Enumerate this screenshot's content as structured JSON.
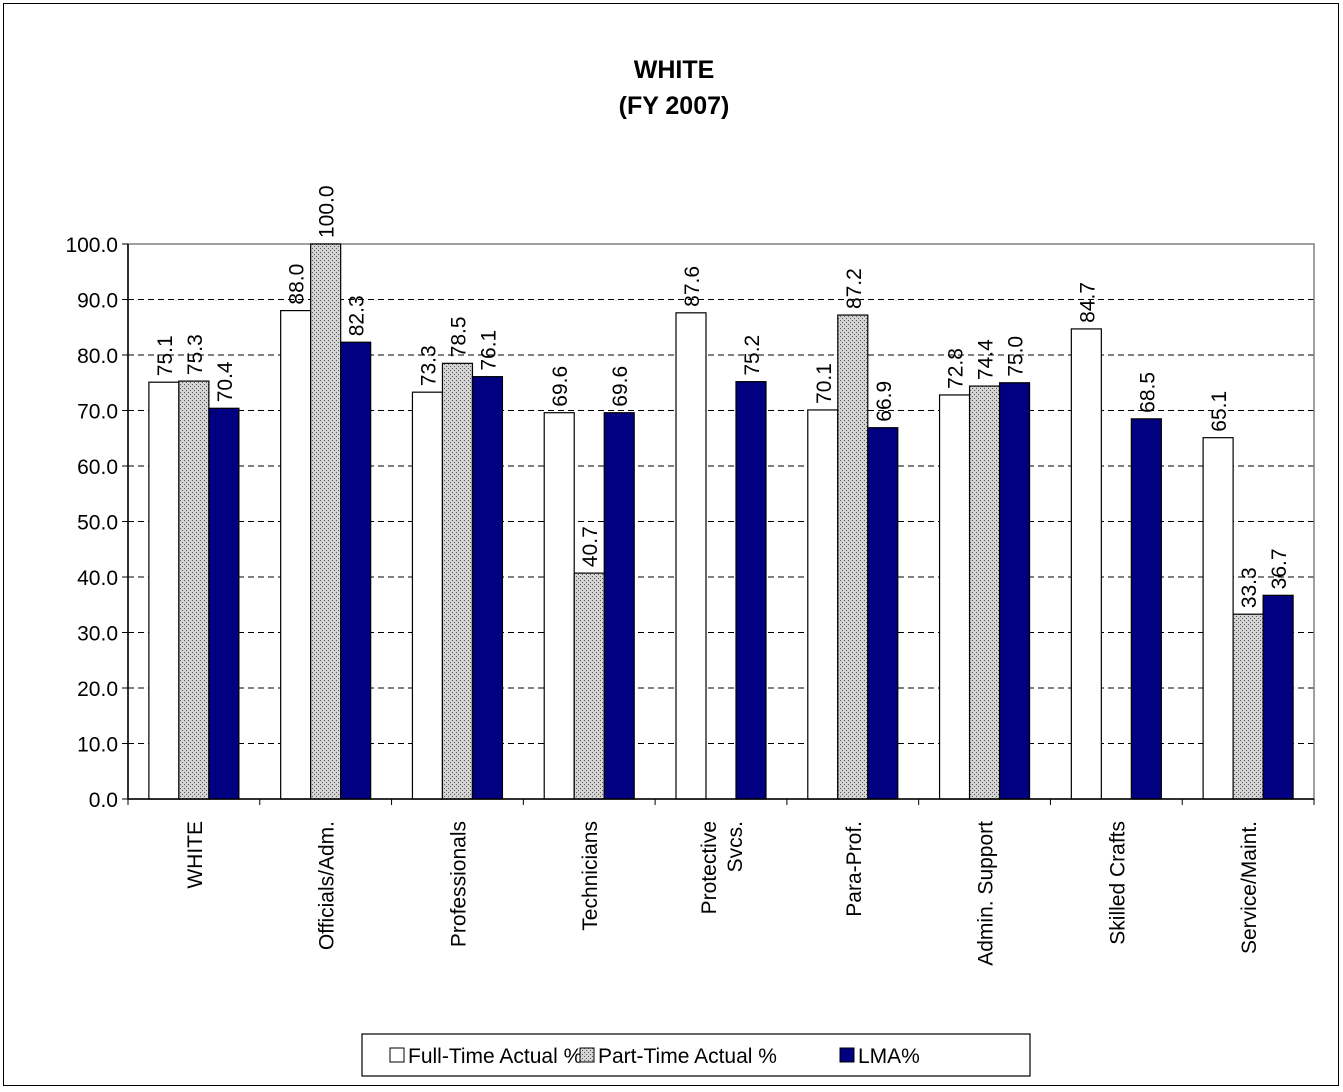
{
  "chart_data": {
    "type": "bar",
    "title": "WHITE",
    "subtitle": "(FY 2007)",
    "categories": [
      "WHITE",
      "Officials/Adm.",
      "Professionals",
      "Technicians",
      "Protective Svcs.",
      "Para-Prof.",
      "Admin. Support",
      "Skilled Crafts",
      "Service/Maint."
    ],
    "series": [
      {
        "name": "Full-Time  Actual %",
        "values": [
          75.1,
          88.0,
          73.3,
          69.6,
          87.6,
          70.1,
          72.8,
          84.7,
          65.1
        ],
        "color": "#ffffff",
        "pattern": "none"
      },
      {
        "name": "Part-Time Actual %",
        "values": [
          75.3,
          100.0,
          78.5,
          40.7,
          null,
          87.2,
          74.4,
          null,
          33.3
        ],
        "color": "#c0c0c0",
        "pattern": "dots"
      },
      {
        "name": "LMA%",
        "values": [
          70.4,
          82.3,
          76.1,
          69.6,
          75.2,
          66.9,
          75.0,
          68.5,
          36.7
        ],
        "color": "#000080",
        "pattern": "none"
      }
    ],
    "ylim": [
      0,
      100
    ],
    "yticks": [
      "0.0",
      "10.0",
      "20.0",
      "30.0",
      "40.0",
      "50.0",
      "60.0",
      "70.0",
      "80.0",
      "90.0",
      "100.0"
    ],
    "grid": "horizontal dashed",
    "legend": "bottom"
  }
}
